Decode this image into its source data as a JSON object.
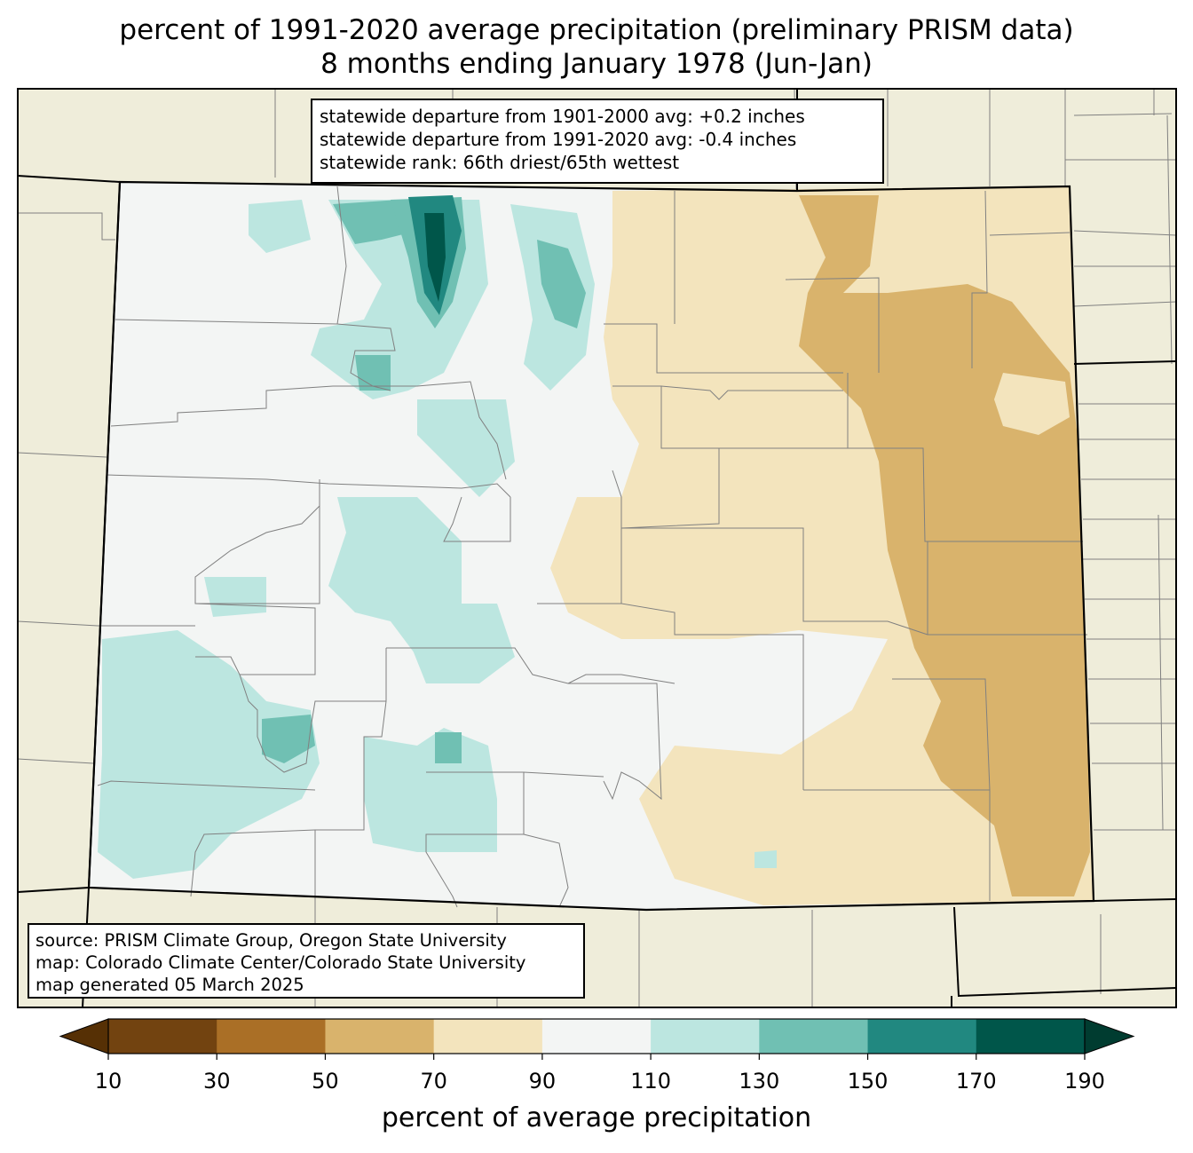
{
  "title": {
    "line1": "percent of 1991-2020 average precipitation (preliminary PRISM data)",
    "line2": "8 months ending January 1978 (Jun-Jan)"
  },
  "stats": {
    "line1": "statewide departure from 1901-2000 avg: +0.2 inches",
    "line2": "statewide departure from 1991-2020 avg: -0.4 inches",
    "line3": "statewide rank: 66th driest/65th wettest"
  },
  "source": {
    "line1": "source: PRISM Climate Group, Oregon State University",
    "line2": "map: Colorado Climate Center/Colorado State University",
    "line3": "map generated 05 March 2025"
  },
  "colorbar": {
    "label": "percent of average precipitation",
    "ticks": [
      "10",
      "30",
      "50",
      "70",
      "90",
      "110",
      "130",
      "150",
      "170",
      "190"
    ],
    "bins": [
      {
        "range": "10-30",
        "color": "#724310"
      },
      {
        "range": "30-50",
        "color": "#aa6f26"
      },
      {
        "range": "50-70",
        "color": "#d9b36c"
      },
      {
        "range": "70-90",
        "color": "#f3e4bd"
      },
      {
        "range": "90-110",
        "color": "#f3f5f4"
      },
      {
        "range": "110-130",
        "color": "#bce6e0"
      },
      {
        "range": "130-150",
        "color": "#70c0b3"
      },
      {
        "range": "150-170",
        "color": "#218880"
      },
      {
        "range": "170-190",
        "color": "#00564a"
      }
    ],
    "under_color": "#563005",
    "over_color": "#003c30"
  },
  "map_colors": {
    "background_land": "#efedda",
    "state_border": "#000000",
    "county_border": "#808080"
  }
}
